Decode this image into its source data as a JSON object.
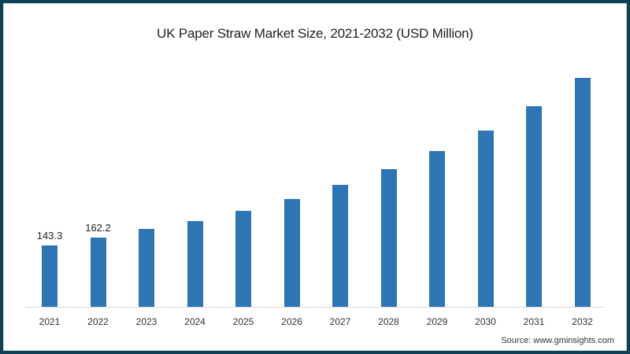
{
  "chart_data": {
    "type": "bar",
    "title": "UK Paper Straw Market Size, 2021-2032 (USD Million)",
    "xlabel": "",
    "ylabel": "",
    "categories": [
      "2021",
      "2022",
      "2023",
      "2024",
      "2025",
      "2026",
      "2027",
      "2028",
      "2029",
      "2030",
      "2031",
      "2032"
    ],
    "values": [
      143.3,
      162.2,
      182,
      200,
      224,
      252,
      285,
      322,
      364,
      412,
      469,
      535
    ],
    "data_labels": {
      "2021": "143.3",
      "2022": "162.2"
    },
    "ylim": [
      0,
      560
    ],
    "grid": false,
    "legend": null,
    "bar_color": "#2e75b6"
  },
  "source": "Source: www.gminsights.com",
  "colors": {
    "frame": "#0e4156",
    "bar": "#2e75b6"
  }
}
